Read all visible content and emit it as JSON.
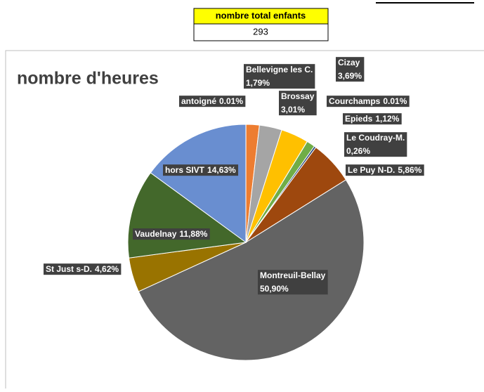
{
  "table": {
    "header": "nombre total enfants",
    "value": "293"
  },
  "chart_data": {
    "type": "pie",
    "title": "nombre d'heures",
    "categories": [
      "antoigné",
      "Bellevigne les C.",
      "Brossay",
      "Cizay",
      "Courchamps",
      "Epieds",
      "Le Coudray-M.",
      "Le Puy N-D.",
      "Montreuil-Bellay",
      "St Just s-D.",
      "Vaudelnay",
      "hors SIVT"
    ],
    "values": [
      0.01,
      1.79,
      3.01,
      3.69,
      0.01,
      1.12,
      0.26,
      5.86,
      50.9,
      4.62,
      11.88,
      14.63
    ],
    "value_labels": [
      "0.01%",
      "1,79%",
      "3,01%",
      "3,69%",
      "0.01%",
      "1,12%",
      "0,26%",
      "5,86%",
      "50,90%",
      "4,62%",
      "11,88%",
      "14,63%"
    ],
    "colors": [
      "#4472c4",
      "#ed7d31",
      "#a5a5a5",
      "#ffc000",
      "#5b9bd5",
      "#70ad47",
      "#264478",
      "#9e480e",
      "#636363",
      "#997300",
      "#43682b",
      "#698ed0"
    ]
  }
}
